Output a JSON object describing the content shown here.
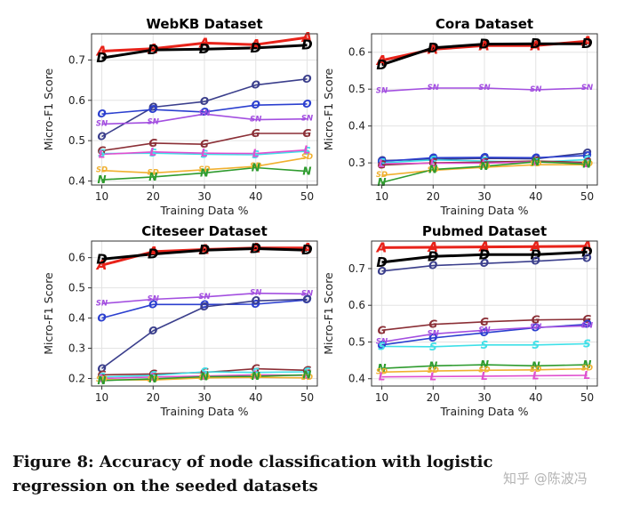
{
  "figure": {
    "caption": "Figure 8: Accuracy of node classification with logistic regression on the seeded datasets",
    "watermark": "知乎 @陈波冯"
  },
  "chart_data": [
    {
      "type": "line",
      "title": "WebKB Dataset",
      "xlabel": "Training Data %",
      "ylabel": "Micro-F1 Score",
      "x": [
        10,
        20,
        30,
        40,
        50
      ],
      "xlim": [
        8,
        52
      ],
      "ylim": [
        0.39,
        0.765
      ],
      "yticks": [
        0.4,
        0.5,
        0.6,
        0.7
      ],
      "grid": true,
      "series": [
        {
          "marker": "A",
          "color": "#e8231a",
          "values": [
            0.722,
            0.728,
            0.742,
            0.738,
            0.756
          ]
        },
        {
          "marker": "D",
          "color": "#000000",
          "values": [
            0.705,
            0.725,
            0.727,
            0.73,
            0.737
          ]
        },
        {
          "marker": "O",
          "color": "#3b3f8c",
          "values": [
            0.51,
            0.583,
            0.597,
            0.638,
            0.653
          ]
        },
        {
          "marker": "O",
          "color": "#2b3fcf",
          "values": [
            0.566,
            0.577,
            0.571,
            0.588,
            0.591
          ]
        },
        {
          "marker": "SN",
          "color": "#a34fe0",
          "values": [
            0.541,
            0.545,
            0.566,
            0.552,
            0.554
          ]
        },
        {
          "marker": "G",
          "color": "#8b2f36",
          "values": [
            0.475,
            0.494,
            0.491,
            0.518,
            0.518
          ]
        },
        {
          "marker": "S",
          "color": "#3fe0e8",
          "values": [
            0.468,
            0.469,
            0.466,
            0.465,
            0.474
          ]
        },
        {
          "marker": "L",
          "color": "#e04fcf",
          "values": [
            0.466,
            0.472,
            0.469,
            0.468,
            0.477
          ]
        },
        {
          "marker": "SD",
          "color": "#f0b030",
          "values": [
            0.426,
            0.42,
            0.428,
            0.436,
            0.458
          ]
        },
        {
          "marker": "N",
          "color": "#2e9b2e",
          "values": [
            0.403,
            0.41,
            0.42,
            0.433,
            0.424
          ]
        }
      ]
    },
    {
      "type": "line",
      "title": "Cora Dataset",
      "xlabel": "Training Data %",
      "ylabel": "Micro-F1 Score",
      "x": [
        10,
        20,
        30,
        40,
        50
      ],
      "xlim": [
        8,
        52
      ],
      "ylim": [
        0.24,
        0.65
      ],
      "yticks": [
        0.3,
        0.4,
        0.5,
        0.6
      ],
      "grid": true,
      "series": [
        {
          "marker": "A",
          "color": "#e8231a",
          "values": [
            0.578,
            0.608,
            0.618,
            0.618,
            0.63
          ]
        },
        {
          "marker": "D",
          "color": "#000000",
          "values": [
            0.566,
            0.612,
            0.622,
            0.623,
            0.623
          ]
        },
        {
          "marker": "SN",
          "color": "#a34fe0",
          "values": [
            0.494,
            0.503,
            0.503,
            0.498,
            0.503
          ]
        },
        {
          "marker": "O",
          "color": "#3b3f8c",
          "values": [
            0.306,
            0.31,
            0.312,
            0.311,
            0.327
          ]
        },
        {
          "marker": "O",
          "color": "#2b3fcf",
          "values": [
            0.304,
            0.314,
            0.315,
            0.314,
            0.32
          ]
        },
        {
          "marker": "S",
          "color": "#3fe0e8",
          "values": [
            0.3,
            0.308,
            0.305,
            0.302,
            0.309
          ]
        },
        {
          "marker": "G",
          "color": "#8b2f36",
          "values": [
            0.294,
            0.3,
            0.302,
            0.305,
            0.301
          ]
        },
        {
          "marker": "L",
          "color": "#e04fcf",
          "values": [
            0.298,
            0.299,
            0.299,
            0.303,
            0.298
          ]
        },
        {
          "marker": "SD",
          "color": "#f0b030",
          "values": [
            0.266,
            0.28,
            0.288,
            0.295,
            0.295
          ]
        },
        {
          "marker": "N",
          "color": "#2e9b2e",
          "values": [
            0.247,
            0.282,
            0.291,
            0.303,
            0.297
          ]
        }
      ]
    },
    {
      "type": "line",
      "title": "Citeseer Dataset",
      "xlabel": "Training Data %",
      "ylabel": "Micro-F1 Score",
      "x": [
        10,
        20,
        30,
        40,
        50
      ],
      "xlim": [
        8,
        52
      ],
      "ylim": [
        0.175,
        0.655
      ],
      "yticks": [
        0.2,
        0.3,
        0.4,
        0.5,
        0.6
      ],
      "grid": true,
      "series": [
        {
          "marker": "A",
          "color": "#e8231a",
          "values": [
            0.575,
            0.62,
            0.627,
            0.632,
            0.632
          ]
        },
        {
          "marker": "D",
          "color": "#000000",
          "values": [
            0.595,
            0.612,
            0.625,
            0.63,
            0.625
          ]
        },
        {
          "marker": "SN",
          "color": "#a34fe0",
          "values": [
            0.448,
            0.462,
            0.47,
            0.482,
            0.48
          ]
        },
        {
          "marker": "O",
          "color": "#2b3fcf",
          "values": [
            0.4,
            0.445,
            0.445,
            0.446,
            0.46
          ]
        },
        {
          "marker": "O",
          "color": "#3b3f8c",
          "values": [
            0.233,
            0.358,
            0.437,
            0.457,
            0.462
          ]
        },
        {
          "marker": "G",
          "color": "#8b2f36",
          "values": [
            0.212,
            0.215,
            0.22,
            0.232,
            0.227
          ]
        },
        {
          "marker": "S",
          "color": "#3fe0e8",
          "values": [
            0.205,
            0.21,
            0.222,
            0.22,
            0.222
          ]
        },
        {
          "marker": "L",
          "color": "#e04fcf",
          "values": [
            0.2,
            0.205,
            0.208,
            0.212,
            0.21
          ]
        },
        {
          "marker": "SD",
          "color": "#f0b030",
          "values": [
            0.196,
            0.195,
            0.202,
            0.204,
            0.202
          ]
        },
        {
          "marker": "N",
          "color": "#2e9b2e",
          "values": [
            0.193,
            0.199,
            0.206,
            0.207,
            0.212
          ]
        }
      ]
    },
    {
      "type": "line",
      "title": "Pubmed Dataset",
      "xlabel": "Training Data %",
      "ylabel": "Micro-F1 Score",
      "x": [
        10,
        20,
        30,
        40,
        50
      ],
      "xlim": [
        8,
        52
      ],
      "ylim": [
        0.38,
        0.775
      ],
      "yticks": [
        0.4,
        0.5,
        0.6,
        0.7
      ],
      "grid": true,
      "series": [
        {
          "marker": "A",
          "color": "#e8231a",
          "values": [
            0.757,
            0.758,
            0.759,
            0.76,
            0.761
          ]
        },
        {
          "marker": "D",
          "color": "#000000",
          "values": [
            0.717,
            0.733,
            0.738,
            0.738,
            0.745
          ]
        },
        {
          "marker": "O",
          "color": "#3b3f8c",
          "values": [
            0.693,
            0.708,
            0.714,
            0.72,
            0.728
          ]
        },
        {
          "marker": "G",
          "color": "#8b2f36",
          "values": [
            0.532,
            0.548,
            0.555,
            0.56,
            0.562
          ]
        },
        {
          "marker": "O",
          "color": "#2b3fcf",
          "values": [
            0.492,
            0.511,
            0.525,
            0.539,
            0.548
          ]
        },
        {
          "marker": "SN",
          "color": "#a34fe0",
          "values": [
            0.5,
            0.522,
            0.532,
            0.54,
            0.544
          ]
        },
        {
          "marker": "S",
          "color": "#3fe0e8",
          "values": [
            0.488,
            0.487,
            0.492,
            0.492,
            0.495
          ]
        },
        {
          "marker": "N",
          "color": "#2e9b2e",
          "values": [
            0.428,
            0.435,
            0.438,
            0.435,
            0.438
          ]
        },
        {
          "marker": "SD",
          "color": "#f0b030",
          "values": [
            0.418,
            0.421,
            0.423,
            0.424,
            0.427
          ]
        },
        {
          "marker": "L",
          "color": "#e04fcf",
          "values": [
            0.405,
            0.406,
            0.407,
            0.408,
            0.409
          ]
        }
      ]
    }
  ]
}
